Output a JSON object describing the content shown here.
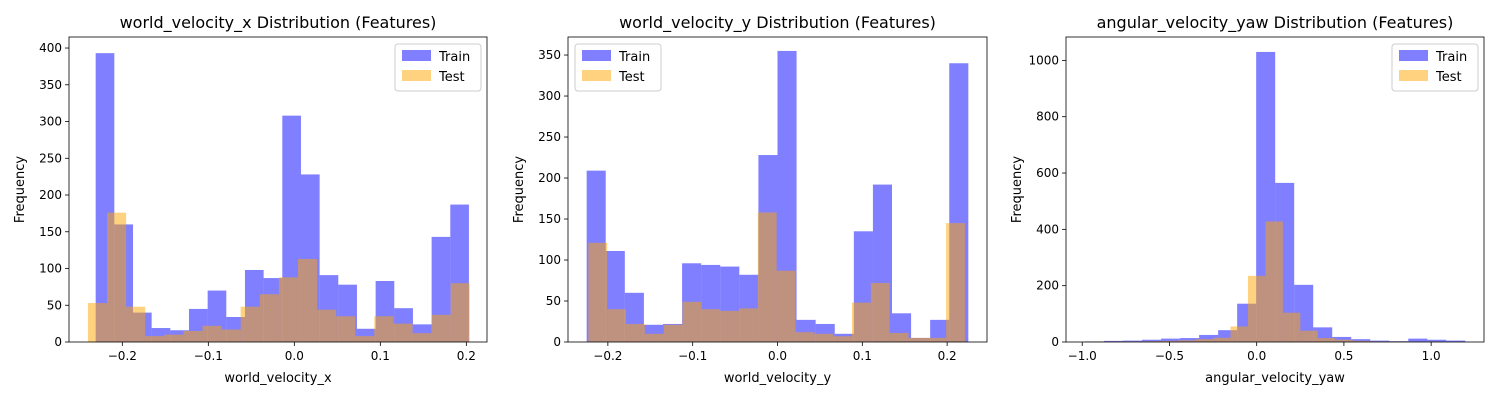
{
  "chart_data": [
    {
      "type": "bar",
      "title": "world_velocity_x Distribution (Features)",
      "xlabel": "world_velocity_x",
      "ylabel": "Frequency",
      "xlim": [
        -0.262,
        0.224
      ],
      "ylim": [
        0,
        415
      ],
      "xticks": [
        -0.2,
        -0.1,
        0.0,
        0.1,
        0.2
      ],
      "xtick_labels": [
        "−0.2",
        "−0.1",
        "0.0",
        "0.1",
        "0.2"
      ],
      "yticks": [
        0,
        50,
        100,
        150,
        200,
        250,
        300,
        350,
        400
      ],
      "legend_position": "top-right",
      "grid": false,
      "series": [
        {
          "name": "Train",
          "color": "#0000ff",
          "opacity": 0.5,
          "bin_edges": [
            -0.231,
            -0.2093,
            -0.1876,
            -0.1659,
            -0.1442,
            -0.1225,
            -0.1008,
            -0.0791,
            -0.0574,
            -0.0357,
            -0.014,
            0.0077,
            0.0294,
            0.0511,
            0.0728,
            0.0945,
            0.1162,
            0.1379,
            0.1596,
            0.1813,
            0.203
          ],
          "values": [
            393,
            160,
            40,
            19,
            16,
            45,
            70,
            34,
            98,
            87,
            308,
            228,
            91,
            78,
            18,
            83,
            46,
            24,
            143,
            187
          ]
        },
        {
          "name": "Test",
          "color": "#ffa500",
          "opacity": 0.5,
          "bin_edges": [
            -0.24,
            -0.2178,
            -0.1956,
            -0.1734,
            -0.1512,
            -0.129,
            -0.1068,
            -0.0846,
            -0.0624,
            -0.0402,
            -0.018,
            0.0042,
            0.0264,
            0.0486,
            0.0708,
            0.093,
            0.1152,
            0.1374,
            0.1596,
            0.1818,
            0.204
          ],
          "values": [
            53,
            176,
            48,
            8,
            10,
            15,
            22,
            17,
            48,
            65,
            88,
            113,
            44,
            35,
            8,
            35,
            25,
            12,
            37,
            80
          ]
        }
      ]
    },
    {
      "type": "bar",
      "title": "world_velocity_y Distribution (Features)",
      "xlabel": "world_velocity_y",
      "ylabel": "Frequency",
      "xlim": [
        -0.247,
        0.247
      ],
      "ylim": [
        0,
        372
      ],
      "xticks": [
        -0.2,
        -0.1,
        0.0,
        0.1,
        0.2
      ],
      "xtick_labels": [
        "−0.2",
        "−0.1",
        "0.0",
        "0.1",
        "0.2"
      ],
      "yticks": [
        0,
        50,
        100,
        150,
        200,
        250,
        300,
        350
      ],
      "legend_position": "top-left",
      "grid": false,
      "series": [
        {
          "name": "Train",
          "color": "#0000ff",
          "opacity": 0.5,
          "bin_edges": [
            -0.225,
            -0.2025,
            -0.18,
            -0.1575,
            -0.135,
            -0.1125,
            -0.09,
            -0.0675,
            -0.045,
            -0.0225,
            0.0,
            0.0225,
            0.045,
            0.0675,
            0.09,
            0.1125,
            0.135,
            0.1575,
            0.18,
            0.2025,
            0.225
          ],
          "values": [
            209,
            111,
            60,
            21,
            22,
            96,
            94,
            92,
            82,
            228,
            355,
            27,
            22,
            10,
            135,
            192,
            35,
            5,
            27,
            340
          ]
        },
        {
          "name": "Test",
          "color": "#ffa500",
          "opacity": 0.5,
          "bin_edges": [
            -0.223,
            -0.2008,
            -0.1786,
            -0.1564,
            -0.1342,
            -0.112,
            -0.0898,
            -0.0676,
            -0.0454,
            -0.0232,
            -0.001,
            0.0212,
            0.0434,
            0.0656,
            0.0878,
            0.11,
            0.1322,
            0.1544,
            0.1766,
            0.1988,
            0.221
          ],
          "values": [
            121,
            40,
            22,
            10,
            21,
            49,
            40,
            38,
            41,
            158,
            87,
            12,
            10,
            7,
            48,
            72,
            11,
            5,
            5,
            145
          ]
        }
      ]
    },
    {
      "type": "bar",
      "title": "angular_velocity_yaw Distribution (Features)",
      "xlabel": "angular_velocity_yaw",
      "ylabel": "Frequency",
      "xlim": [
        -1.093,
        1.303
      ],
      "ylim": [
        0,
        1083
      ],
      "xticks": [
        -1.0,
        -0.5,
        0.0,
        0.5,
        1.0
      ],
      "xtick_labels": [
        "−1.0",
        "−0.5",
        "0.0",
        "0.5",
        "1.0"
      ],
      "yticks": [
        0,
        200,
        400,
        600,
        800,
        1000
      ],
      "legend_position": "top-right",
      "grid": false,
      "series": [
        {
          "name": "Train",
          "color": "#0000ff",
          "opacity": 0.5,
          "bin_edges": [
            -0.984,
            -0.875,
            -0.766,
            -0.657,
            -0.548,
            -0.439,
            -0.33,
            -0.221,
            -0.112,
            -0.003,
            0.106,
            0.215,
            0.324,
            0.433,
            0.542,
            0.651,
            0.76,
            0.869,
            0.978,
            1.087,
            1.196
          ],
          "values": [
            2,
            4,
            5,
            8,
            12,
            14,
            25,
            42,
            136,
            1030,
            565,
            203,
            52,
            18,
            10,
            5,
            3,
            12,
            8,
            5
          ]
        },
        {
          "name": "Test",
          "color": "#ffa500",
          "opacity": 0.5,
          "bin_edges": [
            -0.95,
            -0.85,
            -0.75,
            -0.65,
            -0.55,
            -0.45,
            -0.35,
            -0.25,
            -0.15,
            -0.05,
            0.05,
            0.15,
            0.25,
            0.35,
            0.45,
            0.55,
            0.65,
            0.75,
            0.85,
            0.95,
            1.05
          ],
          "values": [
            2,
            2,
            2,
            3,
            4,
            6,
            10,
            15,
            55,
            235,
            428,
            104,
            40,
            14,
            8,
            4,
            2,
            2,
            2,
            2
          ]
        }
      ]
    }
  ]
}
